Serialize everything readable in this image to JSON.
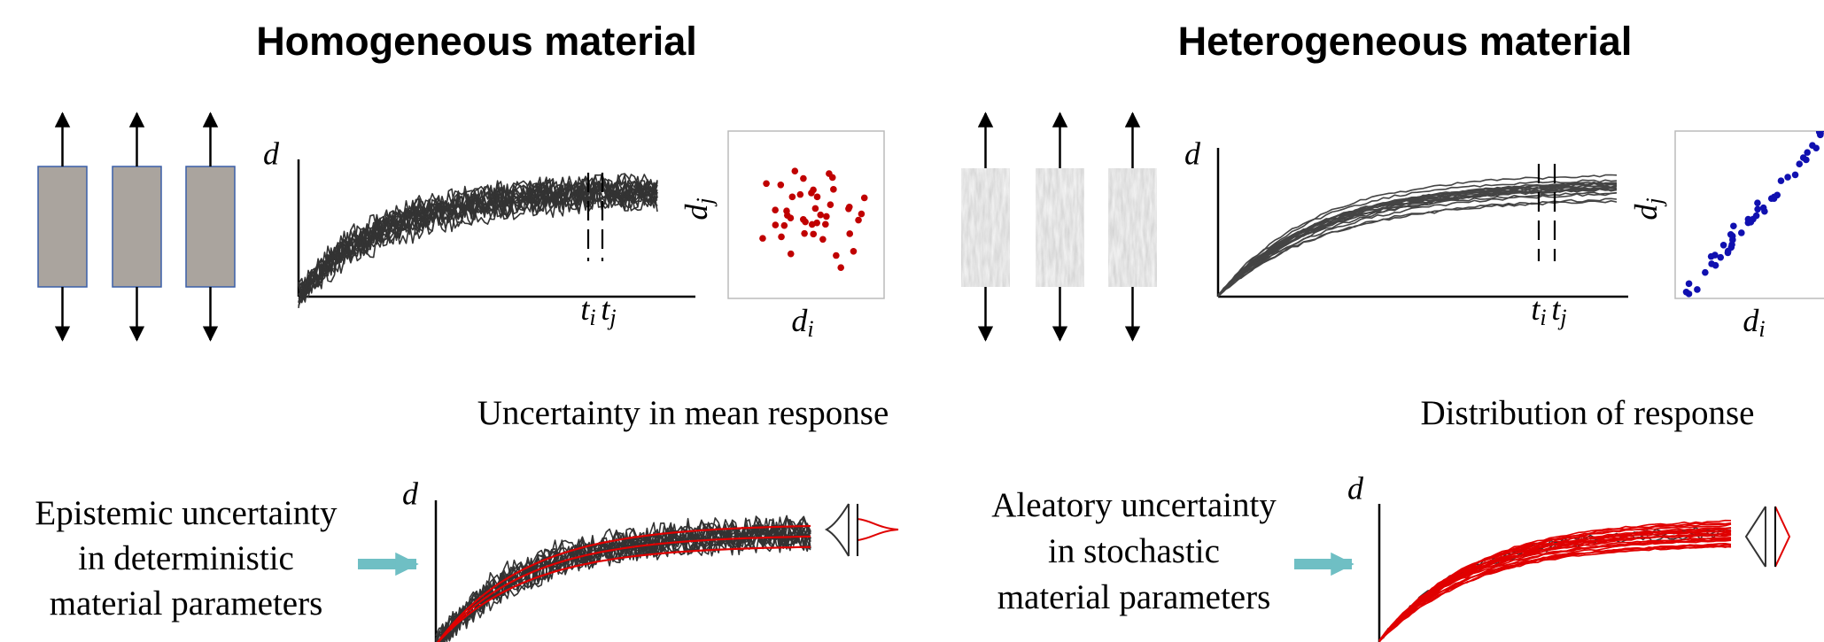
{
  "left": {
    "title": "Homogeneous material",
    "plot_axis": "d",
    "t1": {
      "base": "t",
      "sub": "i"
    },
    "t2": {
      "base": "t",
      "sub": "j"
    },
    "scatter_y": {
      "base": "d",
      "sub": "j"
    },
    "scatter_x": {
      "base": "d",
      "sub": "i"
    },
    "caption": "Uncertainty in mean response",
    "description": [
      "Epistemic uncertainty",
      "in deterministic",
      "material parameters"
    ],
    "bottom_axis": "d"
  },
  "right": {
    "title": "Heterogeneous material",
    "plot_axis": "d",
    "t1": {
      "base": "t",
      "sub": "i"
    },
    "t2": {
      "base": "t",
      "sub": "j"
    },
    "scatter_y": {
      "base": "d",
      "sub": "j"
    },
    "scatter_x": {
      "base": "d",
      "sub": "i"
    },
    "caption": "Distribution of response",
    "description": [
      "Aleatory uncertainty",
      "in stochastic",
      "material parameters"
    ],
    "bottom_axis": "d"
  }
}
